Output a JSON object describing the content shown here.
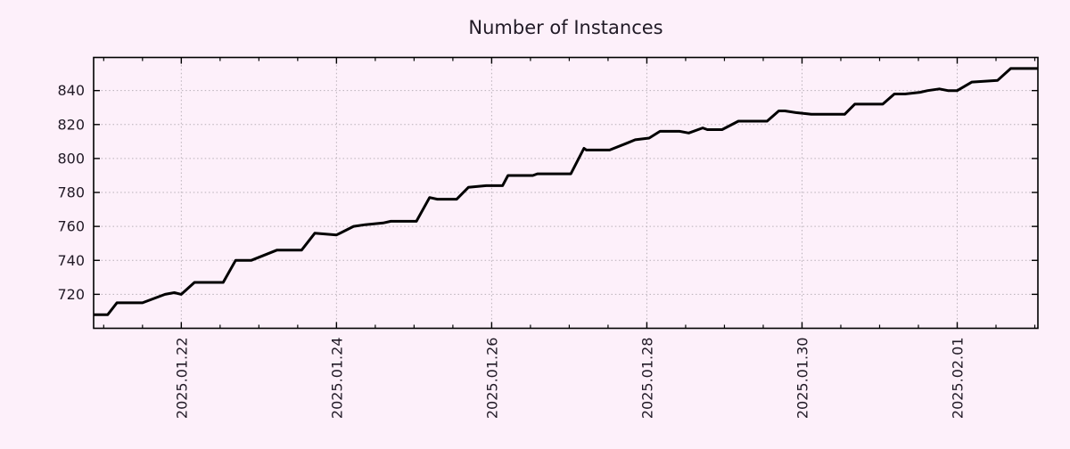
{
  "chart_data": {
    "type": "line",
    "title": "Number of Instances",
    "series_name": "instances",
    "xlabel": "",
    "ylabel": "",
    "legend": "none",
    "grid": "dotted",
    "background_color": "#fdf0fa",
    "line_color": "#000000",
    "grid_color": "#b8b0b8",
    "axis_color": "#000000",
    "text_color": "#211a26",
    "x_unit": "days since 2025-01-21 00:00",
    "xlim": [
      -0.13,
      12.04
    ],
    "ylim": [
      700,
      859.5
    ],
    "y_ticks": [
      720,
      740,
      760,
      780,
      800,
      820,
      840
    ],
    "x_major_ticks": [
      1,
      3,
      5,
      7,
      9,
      11
    ],
    "x_major_labels": [
      "2025.01.22",
      "2025.01.24",
      "2025.01.26",
      "2025.01.28",
      "2025.01.30",
      "2025.02.01"
    ],
    "x_minor_step": 0.5,
    "points": [
      [
        -0.13,
        708
      ],
      [
        0.05,
        708
      ],
      [
        0.17,
        715
      ],
      [
        0.5,
        715
      ],
      [
        0.79,
        720
      ],
      [
        0.91,
        721
      ],
      [
        1.0,
        720
      ],
      [
        1.17,
        727
      ],
      [
        1.54,
        727
      ],
      [
        1.7,
        740
      ],
      [
        1.9,
        740
      ],
      [
        2.23,
        746
      ],
      [
        2.55,
        746
      ],
      [
        2.72,
        756
      ],
      [
        3.0,
        755
      ],
      [
        3.22,
        760
      ],
      [
        3.37,
        761
      ],
      [
        3.6,
        762
      ],
      [
        3.7,
        763
      ],
      [
        4.03,
        763
      ],
      [
        4.2,
        777
      ],
      [
        4.3,
        776
      ],
      [
        4.55,
        776
      ],
      [
        4.7,
        783
      ],
      [
        4.93,
        784
      ],
      [
        5.14,
        784
      ],
      [
        5.21,
        790
      ],
      [
        5.53,
        790
      ],
      [
        5.59,
        791
      ],
      [
        6.02,
        791
      ],
      [
        6.19,
        806
      ],
      [
        6.22,
        805
      ],
      [
        6.52,
        805
      ],
      [
        6.74,
        809
      ],
      [
        6.85,
        811
      ],
      [
        7.03,
        812
      ],
      [
        7.17,
        816
      ],
      [
        7.42,
        816
      ],
      [
        7.54,
        815
      ],
      [
        7.72,
        818
      ],
      [
        7.78,
        817
      ],
      [
        7.97,
        817
      ],
      [
        8.18,
        822
      ],
      [
        8.55,
        822
      ],
      [
        8.7,
        828
      ],
      [
        8.78,
        828
      ],
      [
        8.92,
        827
      ],
      [
        9.12,
        826
      ],
      [
        9.55,
        826
      ],
      [
        9.68,
        832
      ],
      [
        10.04,
        832
      ],
      [
        10.19,
        838
      ],
      [
        10.33,
        838
      ],
      [
        10.52,
        839
      ],
      [
        10.62,
        840
      ],
      [
        10.77,
        841
      ],
      [
        10.88,
        840
      ],
      [
        11.0,
        840
      ],
      [
        11.19,
        845
      ],
      [
        11.52,
        846
      ],
      [
        11.69,
        853
      ],
      [
        12.04,
        853
      ]
    ]
  }
}
